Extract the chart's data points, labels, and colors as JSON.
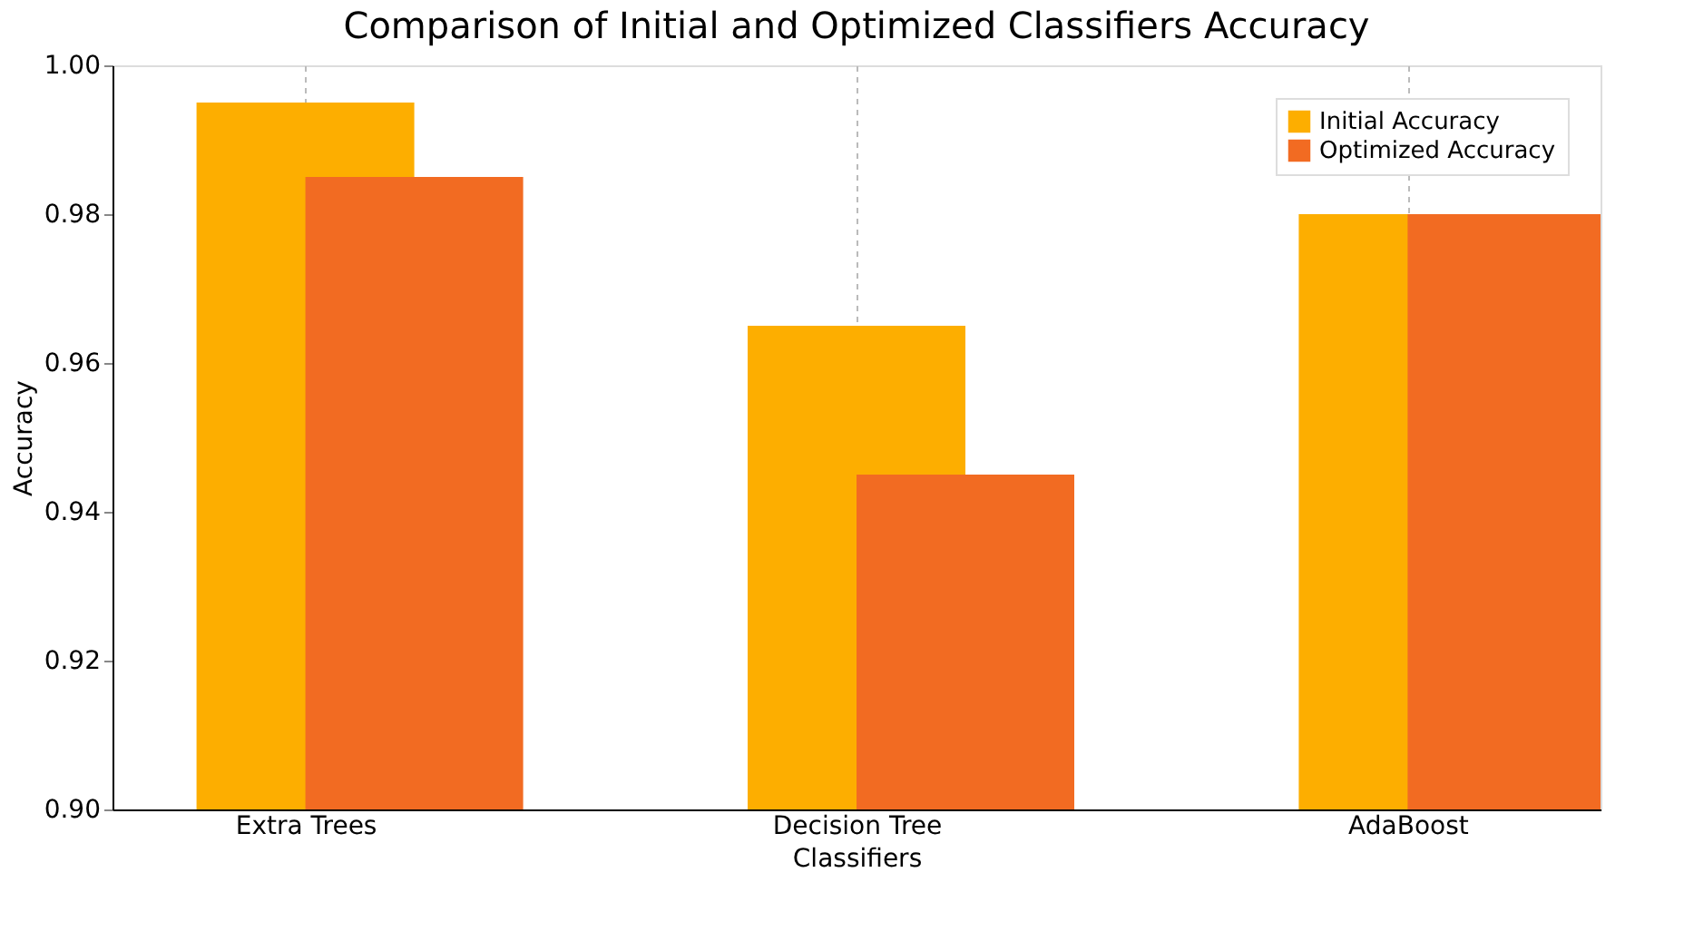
{
  "chart_data": {
    "type": "bar",
    "title": "Comparison of Initial and Optimized Classifiers Accuracy",
    "xlabel": "Classifiers",
    "ylabel": "Accuracy",
    "categories": [
      "Extra Trees",
      "Decision Tree",
      "AdaBoost"
    ],
    "series": [
      {
        "name": "Initial Accuracy",
        "color": "#fdae00",
        "values": [
          0.995,
          0.965,
          0.98
        ]
      },
      {
        "name": "Optimized Accuracy",
        "color": "#f26b22",
        "values": [
          0.985,
          0.945,
          0.98
        ]
      }
    ],
    "ylim": [
      0.9,
      1.0
    ],
    "yticks": [
      {
        "value": 0.9,
        "label": "0.90"
      },
      0.92,
      0.94,
      0.96,
      0.98,
      {
        "value": 1.0,
        "label": "1.00"
      }
    ],
    "grid": "x",
    "legend": "top right"
  }
}
